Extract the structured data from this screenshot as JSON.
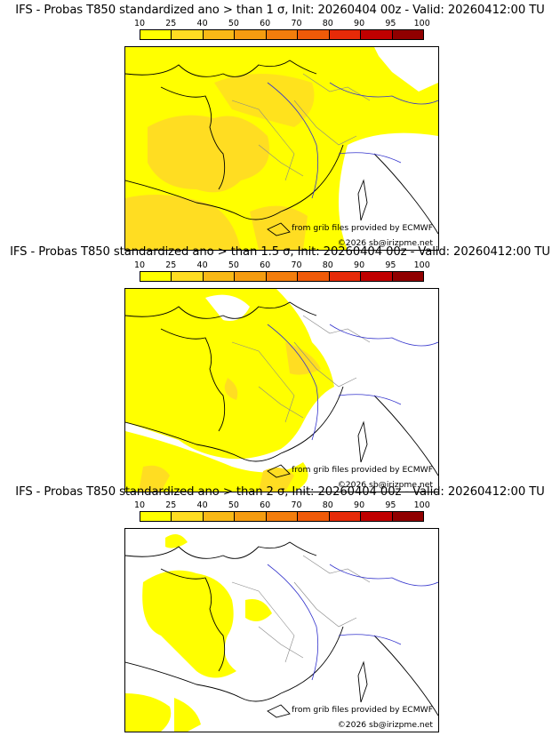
{
  "colorbar": {
    "labels": [
      "10",
      "25",
      "40",
      "50",
      "60",
      "70",
      "80",
      "90",
      "95",
      "100"
    ],
    "colors": [
      "#ffff00",
      "#ffdd22",
      "#f9b916",
      "#f59c10",
      "#f37d0c",
      "#f05a08",
      "#e62a08",
      "#c00000",
      "#900000",
      "#5a0000"
    ]
  },
  "credits": {
    "grib": "from grib files provided by ECMWF",
    "copyright": "©2026 sb@irizpme.net"
  },
  "panels": [
    {
      "title": "IFS - Probas T850  standardized ano > than 1 σ, Init: 20260404 00z - Valid: 20260412:00 TU"
    },
    {
      "title": "IFS - Probas T850  standardized ano > than 1.5 σ, Init: 20260404 00z - Valid: 20260412:00 TU"
    },
    {
      "title": "IFS - Probas T850  standardized ano > than 2 σ, Init: 20260404 00z - Valid: 20260412:00 TU"
    }
  ]
}
